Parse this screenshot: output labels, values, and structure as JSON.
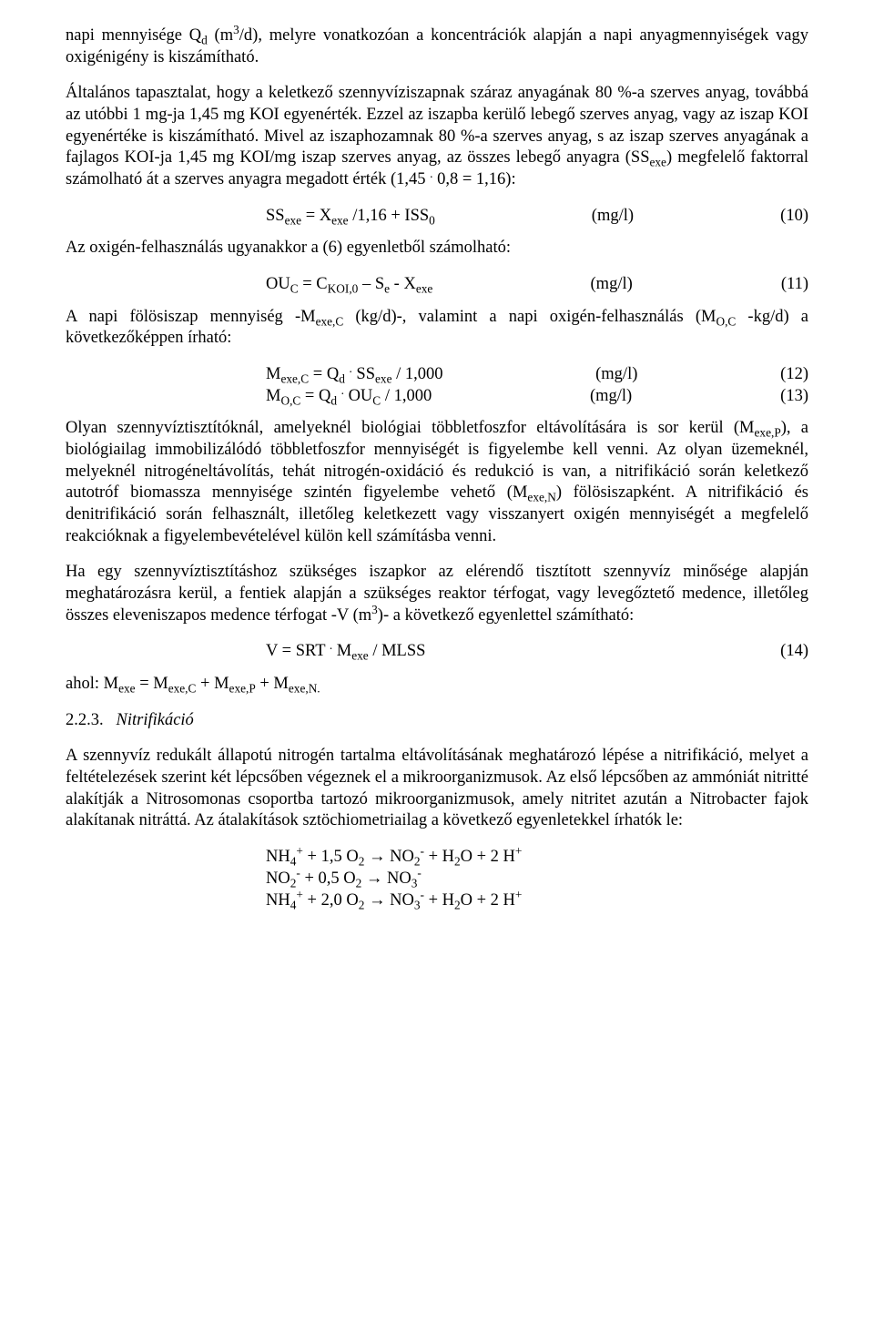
{
  "colors": {
    "text": "#000000",
    "background": "#ffffff"
  },
  "typography": {
    "family": "Times New Roman",
    "body_pt": 14,
    "line_height": 1.28
  },
  "paragraphs": {
    "p1": "napi mennyisége Q<sub>d</sub> (m<sup>3</sup>/d), melyre vonatkozóan a koncentrációk alapján a napi anyagmennyiségek vagy oxigénigény is kiszámítható.",
    "p2": "Általános tapasztalat, hogy a keletkező szennyvíziszapnak száraz anyagának 80 %-a szerves anyag, továbbá az utóbbi 1 mg-ja 1,45 mg KOI egyenérték. Ezzel az iszapba kerülő lebegő szerves anyag, vagy az iszap KOI egyenértéke is kiszámítható. Mivel az iszaphozamnak 80 %-a szerves anyag, s az iszap szerves anyagának a fajlagos KOI-ja 1,45 mg KOI/mg iszap szerves anyag, az összes lebegő anyagra  (SS<sub>exe</sub>) megfelelő faktorral számolható át a szerves anyagra megadott érték (1,45 <sup>.</sup> 0,8 = 1,16):",
    "p3": "Az oxigén-felhasználás ugyanakkor a (6) egyenletből számolható:",
    "p4": "A napi fölösiszap mennyiség -M<sub>exe,C</sub> (kg/d)-, valamint a napi oxigén-felhasználás (M<sub>O,C</sub> -kg/d) a következőképpen írható:",
    "p5": "Olyan szennyvíztisztítóknál, amelyeknél biológiai többletfoszfor eltávolítására is sor kerül (M<sub>exe,P</sub>), a biológiailag immobilizálódó többletfoszfor mennyiségét is figyelembe kell venni. Az olyan üzemeknél, melyeknél nitrogéneltávolítás, tehát nitrogén-oxidáció és redukció is van, a nitrifikáció során keletkező autotróf biomassza mennyisége szintén figyelembe vehető (M<sub>exe,N</sub>) fölösiszapként. A nitrifikáció és denitrifikáció során felhasznált, illetőleg keletkezett vagy visszanyert oxigén mennyiségét a megfelelő reakcióknak a figyelembevételével külön kell számításba venni.",
    "p6": "Ha egy szennyvíztisztításhoz szükséges iszapkor az elérendő tisztított szennyvíz minősége alapján meghatározásra kerül, a fentiek alapján a szükséges reaktor térfogat, vagy levegőztető medence, illetőleg összes eleveniszapos medence térfogat -V (m<sup>3</sup>)- a következő egyenlettel számítható:",
    "p7": "ahol:  M<sub>exe</sub> = M<sub>exe,C</sub> + M<sub>exe,P</sub> + M<sub>exe,N.</sub>",
    "p8_heading_number": "2.2.3.",
    "p8_heading_text": "Nitrifikáció",
    "p9": "A szennyvíz redukált állapotú nitrogén tartalma eltávolításának meghatározó lépése a nitrifikáció, melyet a feltételezések szerint két lépcsőben végeznek el a mikroorganizmusok. Az első lépcsőben az ammóniát nitritté alakítják a Nitrosomonas csoportba tartozó mikroorganizmusok, amely nitritet azután a Nitrobacter fajok alakítanak nitráttá. Az átalakítások sztöchiometriailag a következő egyenletekkel írhatók le:"
  },
  "equations": {
    "eq10": {
      "expr": "SS<sub>exe</sub> = X<sub>exe</sub> /1,16 + ISS<sub>0</sub>",
      "unit": "(mg/l)",
      "num": "(10)"
    },
    "eq11": {
      "expr": "OU<sub>C</sub> = C<sub>KOI,0</sub> – S<sub>e</sub> - X<sub>exe</sub>",
      "unit": "(mg/l)",
      "num": "(11)"
    },
    "eq12": {
      "expr": "M<sub>exe,C</sub> = Q<sub>d</sub> <sup>.</sup> SS<sub>exe</sub> / 1,000",
      "unit": "(mg/l)",
      "num": "(12)"
    },
    "eq13": {
      "expr": "M<sub>O,C</sub> = Q<sub>d</sub> <sup>.</sup> OU<sub>C</sub> / 1,000",
      "unit": "(mg/l)",
      "num": "(13)"
    },
    "eq14": {
      "expr": "V = SRT <sup>.</sup> M<sub>exe</sub>  / MLSS",
      "num": "(14)"
    }
  },
  "chemistry": {
    "r1": "NH<sub>4</sub><sup>+</sup> + 1,5 O<sub>2</sub> → NO<sub>2</sub><sup>-</sup> + H<sub>2</sub>O + 2 H<sup>+</sup>",
    "r2": "NO<sub>2</sub><sup>-</sup>  + 0,5 O<sub>2</sub> → NO<sub>3</sub><sup>-</sup>",
    "r3": "NH<sub>4</sub><sup>+</sup> + 2,0 O<sub>2</sub> → NO<sub>3</sub><sup>-</sup> + H<sub>2</sub>O + 2 H<sup>+</sup>"
  }
}
